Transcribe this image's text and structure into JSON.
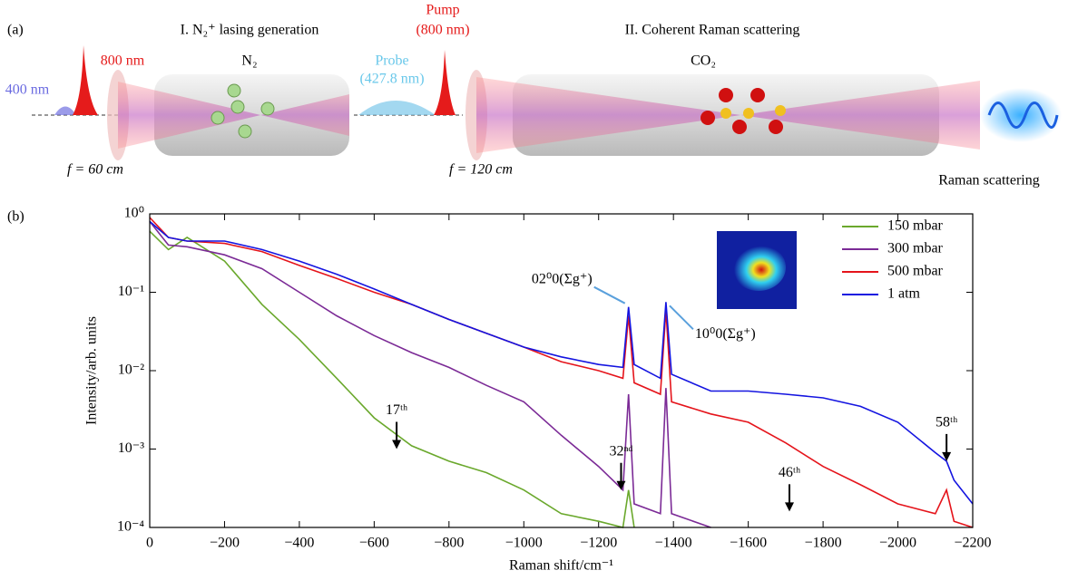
{
  "schematic": {
    "panel_label": "(a)",
    "stage1_title": "I. N₂⁺ lasing generation",
    "stage2_title": "II. Coherent Raman scattering",
    "pump_line1": "Pump",
    "pump_line2": "(800 nm)",
    "label_800": "800 nm",
    "label_400": "400 nm",
    "gas1": "N₂",
    "probe_line1": "Probe",
    "probe_line2": "(427.8 nm)",
    "gas2": "CO₂",
    "focal1": "f = 60 cm",
    "focal2": "f = 120 cm",
    "raman_out": "Raman scattering"
  },
  "chart_data": {
    "type": "line",
    "panel_label": "(b)",
    "x_label": "Raman shift/cm⁻¹",
    "y_label": "Intensity/arb. units",
    "log_y": true,
    "legend": "upper right",
    "xlim": [
      0,
      -2200
    ],
    "ylim": [
      0.0001,
      1
    ],
    "xticks": [
      0,
      {
        "value": -200,
        "label": "−200"
      },
      {
        "value": -400,
        "label": "−400"
      },
      {
        "value": -600,
        "label": "−600"
      },
      {
        "value": -800,
        "label": "−800"
      },
      {
        "value": -1000,
        "label": "−1000"
      },
      {
        "value": -1200,
        "label": "−1200"
      },
      {
        "value": -1400,
        "label": "−1400"
      },
      {
        "value": -1600,
        "label": "−1600"
      },
      {
        "value": -1800,
        "label": "−1800"
      },
      {
        "value": -2000,
        "label": "−2000"
      },
      {
        "value": -2200,
        "label": "−2200"
      }
    ],
    "yticks": [
      {
        "value": 0.0001,
        "label": "10⁻⁴"
      },
      {
        "value": 0.001,
        "label": "10⁻³"
      },
      {
        "value": 0.01,
        "label": "10⁻²"
      },
      {
        "value": 0.1,
        "label": "10⁻¹"
      },
      {
        "value": 1,
        "label": "10⁰"
      }
    ],
    "x": [
      0,
      -50,
      -100,
      -200,
      -300,
      -400,
      -500,
      -600,
      -700,
      -800,
      -900,
      -1000,
      -1100,
      -1200,
      -1265,
      -1280,
      -1295,
      -1365,
      -1380,
      -1395,
      -1500,
      -1600,
      -1700,
      -1800,
      -1900,
      -2000,
      -2100,
      -2130,
      -2150,
      -2200
    ],
    "series": [
      {
        "name": "150 mbar",
        "color": "#6aa82c",
        "values": [
          0.6,
          0.35,
          0.5,
          0.25,
          0.07,
          0.025,
          0.008,
          0.0025,
          0.0011,
          0.0007,
          0.0005,
          0.0003,
          0.00015,
          0.00012,
          0.0001,
          0.0003,
          0.0001,
          null,
          null,
          null,
          null,
          null,
          null,
          null,
          null,
          null,
          null,
          null,
          null,
          null
        ]
      },
      {
        "name": "300 mbar",
        "color": "#7b2a96",
        "values": [
          0.8,
          0.4,
          0.38,
          0.3,
          0.2,
          0.1,
          0.05,
          0.028,
          0.017,
          0.011,
          0.0065,
          0.004,
          0.0015,
          0.0006,
          0.0003,
          0.005,
          0.0002,
          0.00015,
          0.006,
          0.00015,
          0.0001,
          null,
          null,
          null,
          null,
          null,
          null,
          null,
          null,
          null
        ]
      },
      {
        "name": "500 mbar",
        "color": "#e5141b",
        "values": [
          0.9,
          0.5,
          0.45,
          0.42,
          0.33,
          0.22,
          0.15,
          0.1,
          0.07,
          0.045,
          0.03,
          0.02,
          0.013,
          0.01,
          0.008,
          0.05,
          0.007,
          0.005,
          0.06,
          0.004,
          0.0028,
          0.0022,
          0.0012,
          0.0006,
          0.00035,
          0.0002,
          0.00015,
          0.0003,
          0.00012,
          0.0001
        ]
      },
      {
        "name": "1 atm",
        "color": "#1414e0",
        "values": [
          0.8,
          0.5,
          0.45,
          0.45,
          0.35,
          0.25,
          0.17,
          0.11,
          0.07,
          0.045,
          0.03,
          0.02,
          0.015,
          0.012,
          0.011,
          0.065,
          0.012,
          0.008,
          0.075,
          0.009,
          0.0055,
          0.0055,
          0.005,
          0.0045,
          0.0035,
          0.0022,
          0.0009,
          0.0007,
          0.0004,
          0.0002
        ]
      }
    ],
    "annotations": [
      {
        "text": "17ᵗʰ",
        "x": -660,
        "y": 0.001
      },
      {
        "text": "32ⁿᵈ",
        "x": -1260,
        "y": 0.0003
      },
      {
        "text": "46ᵗʰ",
        "x": -1710,
        "y": 0.00016
      },
      {
        "text": "58ᵗʰ",
        "x": -2130,
        "y": 0.0007
      },
      {
        "text": "02⁰0(Σg⁺)",
        "x": -1280,
        "y": 0.065
      },
      {
        "text": "10⁰0(Σg⁺)",
        "x": -1380,
        "y": 0.075
      }
    ]
  }
}
